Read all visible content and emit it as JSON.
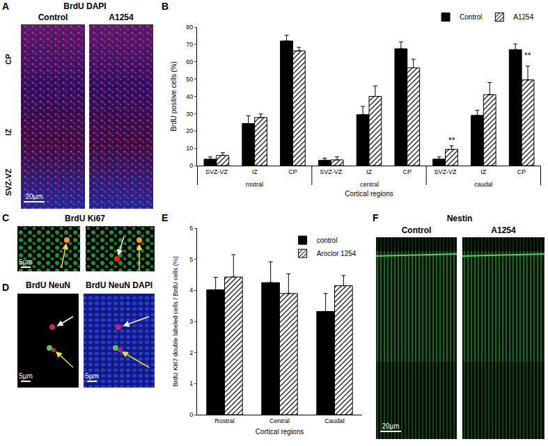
{
  "panel_A": {
    "label": "A",
    "title": "BrdU DAPI",
    "columns": [
      "Control",
      "A1254"
    ],
    "regions": [
      "CP",
      "IZ",
      "SVZ-VZ"
    ],
    "scale_bar": "20µm"
  },
  "panel_C": {
    "label": "C",
    "title": "BrdU Ki67",
    "scale_bar": "5µm"
  },
  "panel_D": {
    "label": "D",
    "titles": [
      "BrdU NeuN",
      "BrdU NeuN DAPI"
    ],
    "scale_bars": [
      "5µm",
      "5µm"
    ]
  },
  "panel_F": {
    "label": "F",
    "title": "Nestin",
    "columns": [
      "Control",
      "A1254"
    ],
    "scale_bar": "20µm"
  },
  "chart_data": [
    {
      "label": "B",
      "type": "bar",
      "categories": [
        "SVZ-VZ",
        "IZ",
        "CP",
        "SVZ-VZ",
        "IZ",
        "CP",
        "SVZ-VZ",
        "IZ",
        "CP"
      ],
      "category_groups": [
        "rostral",
        "central",
        "caudal"
      ],
      "xlabel": "Cortical regions",
      "ylabel": "BrdU positive cells (%)",
      "ylim": [
        0,
        80
      ],
      "yticks": [
        0,
        10,
        20,
        30,
        40,
        50,
        60,
        70,
        80
      ],
      "grid": false,
      "legend": "top right",
      "series": [
        {
          "name": "Control",
          "color": "#000000",
          "values": [
            3.7,
            24.3,
            72.0,
            3.1,
            29.4,
            67.5,
            3.8,
            29.0,
            67.0
          ],
          "errors": [
            1.3,
            4.5,
            3.3,
            1.2,
            4.8,
            4.0,
            1.3,
            3.0,
            3.3
          ]
        },
        {
          "name": "A1254",
          "color": "#ffffff",
          "marker": "hatched",
          "values": [
            5.9,
            27.8,
            66.3,
            3.3,
            40.0,
            56.5,
            9.4,
            41.0,
            49.5
          ],
          "errors": [
            1.5,
            2.0,
            2.0,
            1.8,
            6.0,
            5.0,
            2.0,
            7.0,
            8.0
          ]
        }
      ],
      "annotations": [
        {
          "text": "**",
          "index": 6,
          "series": "A1254",
          "y": 11
        },
        {
          "text": "**",
          "index": 8,
          "series": "A1254",
          "y": 60
        }
      ]
    },
    {
      "label": "E",
      "type": "bar",
      "categories": [
        "Rostral",
        "Central",
        "Caudal"
      ],
      "xlabel": "Cortical regions",
      "ylabel": "BrdU Ki67 double labeled cells / BrdU cells (%)",
      "ylim": [
        0,
        6
      ],
      "yticks": [
        0,
        1,
        2,
        3,
        4,
        5,
        6
      ],
      "grid": false,
      "legend": "top right",
      "series": [
        {
          "name": "control",
          "color": "#000000",
          "values": [
            4.02,
            4.25,
            3.32
          ],
          "errors": [
            0.4,
            0.67,
            0.58
          ]
        },
        {
          "name": "Aroclor 1254",
          "color": "#ffffff",
          "marker": "hatched",
          "values": [
            4.43,
            3.9,
            4.15
          ],
          "errors": [
            0.72,
            0.63,
            0.33
          ]
        }
      ]
    }
  ]
}
